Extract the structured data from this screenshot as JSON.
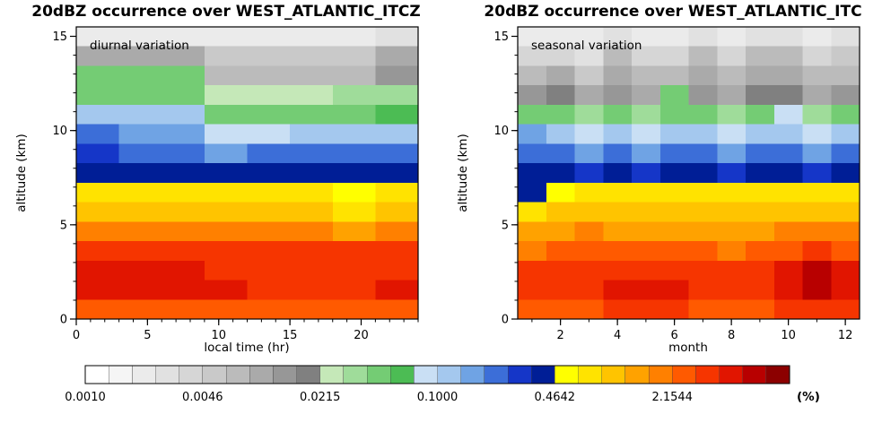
{
  "page": {
    "background": "#ffffff"
  },
  "color_scale": {
    "min_percent": 0.001,
    "max_percent": 10,
    "unit_label": "(%)",
    "tick_labels": [
      "0.0010",
      "0.0046",
      "0.0215",
      "0.1000",
      "0.4642",
      "2.1544"
    ],
    "colors": [
      "#ffffff",
      "#f5f5f5",
      "#ebebeb",
      "#e1e1e1",
      "#d6d6d6",
      "#c9c9c9",
      "#bbbbbb",
      "#aaaaaa",
      "#979797",
      "#808080",
      "#c5e8b8",
      "#9fdc9a",
      "#74cc74",
      "#4cbc54",
      "#c9dff4",
      "#a4c8ee",
      "#6fa3e4",
      "#3c6ed8",
      "#1536c8",
      "#001e96",
      "#ffff00",
      "#ffe300",
      "#ffc400",
      "#ffa200",
      "#ff8000",
      "#ff5a00",
      "#f63500",
      "#e11500",
      "#b80000",
      "#8c0000"
    ]
  },
  "chart_data": [
    {
      "type": "heatmap",
      "title": "20dBZ occurrence over WEST_ATLANTIC_ITCZ",
      "annotation": "diurnal variation",
      "xlabel": "local time (hr)",
      "ylabel": "altitude (km)",
      "x_range": [
        0,
        24
      ],
      "y_range": [
        0,
        15.5
      ],
      "x_ticks": [
        0,
        5,
        10,
        15,
        20
      ],
      "x_minor_step": 1,
      "y_ticks": [
        0,
        5,
        10,
        15
      ],
      "y_minor_step": 1,
      "x_bin_starts_hr": [
        0,
        3,
        6,
        9,
        12,
        15,
        18,
        21
      ],
      "row_altitudes_km_top_to_bottom": [
        15,
        14,
        13,
        12,
        11,
        10,
        9,
        8,
        7,
        6,
        5,
        4,
        3,
        2,
        1
      ],
      "values_percent": [
        [
          0.0022,
          0.0022,
          0.0022,
          0.0022,
          0.0022,
          0.0022,
          0.0022,
          0.0029
        ],
        [
          0.01,
          0.01,
          0.01,
          0.0054,
          0.0054,
          0.0054,
          0.0054,
          0.01
        ],
        [
          0.046,
          0.046,
          0.046,
          0.0074,
          0.0074,
          0.0074,
          0.0074,
          0.014
        ],
        [
          0.046,
          0.046,
          0.046,
          0.025,
          0.025,
          0.025,
          0.034,
          0.034
        ],
        [
          0.117,
          0.117,
          0.117,
          0.046,
          0.046,
          0.046,
          0.046,
          0.063
        ],
        [
          0.215,
          0.158,
          0.158,
          0.086,
          0.086,
          0.117,
          0.117,
          0.117
        ],
        [
          0.293,
          0.215,
          0.215,
          0.158,
          0.215,
          0.215,
          0.215,
          0.215
        ],
        [
          0.398,
          0.398,
          0.398,
          0.398,
          0.398,
          0.398,
          0.398,
          0.398
        ],
        [
          0.74,
          0.74,
          0.74,
          0.74,
          0.74,
          0.74,
          0.54,
          0.74
        ],
        [
          1.0,
          1.0,
          1.0,
          1.0,
          1.0,
          1.0,
          0.74,
          1.0
        ],
        [
          1.85,
          1.85,
          1.85,
          1.85,
          1.85,
          1.85,
          1.36,
          1.85
        ],
        [
          3.41,
          3.41,
          3.41,
          3.41,
          3.41,
          3.41,
          3.41,
          3.41
        ],
        [
          4.64,
          4.64,
          4.64,
          3.41,
          3.41,
          3.41,
          3.41,
          3.41
        ],
        [
          4.64,
          4.64,
          4.64,
          4.64,
          3.41,
          3.41,
          3.41,
          4.64
        ],
        [
          2.51,
          2.51,
          2.51,
          2.51,
          2.51,
          2.51,
          2.51,
          2.51
        ]
      ]
    },
    {
      "type": "heatmap",
      "title": "20dBZ occurrence over WEST_ATLANTIC_ITC",
      "annotation": "seasonal variation",
      "xlabel": "month",
      "ylabel": "altitude (km)",
      "x_range": [
        0.5,
        12.5
      ],
      "y_range": [
        0,
        15.5
      ],
      "x_ticks": [
        2,
        4,
        6,
        8,
        10,
        12
      ],
      "x_minor_step": 1,
      "y_ticks": [
        0,
        5,
        10,
        15
      ],
      "y_minor_step": 1,
      "x_bin_starts_month": [
        1,
        2,
        3,
        4,
        5,
        6,
        7,
        8,
        9,
        10,
        11,
        12
      ],
      "row_altitudes_km_top_to_bottom": [
        15,
        14,
        13,
        12,
        11,
        10,
        9,
        8,
        7,
        6,
        5,
        4,
        3,
        2,
        1
      ],
      "values_percent": [
        [
          0.0022,
          0.0022,
          0.0022,
          0.0029,
          0.0022,
          0.0022,
          0.0029,
          0.0022,
          0.0029,
          0.0029,
          0.0022,
          0.0029
        ],
        [
          0.004,
          0.004,
          0.0029,
          0.0074,
          0.004,
          0.004,
          0.0074,
          0.004,
          0.0074,
          0.0074,
          0.004,
          0.0054
        ],
        [
          0.0074,
          0.01,
          0.0054,
          0.01,
          0.0074,
          0.0074,
          0.01,
          0.0074,
          0.01,
          0.01,
          0.0074,
          0.0074
        ],
        [
          0.014,
          0.019,
          0.01,
          0.014,
          0.01,
          0.046,
          0.014,
          0.01,
          0.019,
          0.019,
          0.01,
          0.014
        ],
        [
          0.046,
          0.046,
          0.034,
          0.046,
          0.034,
          0.046,
          0.046,
          0.034,
          0.046,
          0.086,
          0.034,
          0.046
        ],
        [
          0.158,
          0.117,
          0.086,
          0.117,
          0.086,
          0.117,
          0.117,
          0.086,
          0.117,
          0.117,
          0.086,
          0.117
        ],
        [
          0.215,
          0.215,
          0.158,
          0.215,
          0.158,
          0.215,
          0.215,
          0.158,
          0.215,
          0.215,
          0.158,
          0.215
        ],
        [
          0.398,
          0.398,
          0.293,
          0.398,
          0.293,
          0.398,
          0.398,
          0.293,
          0.398,
          0.398,
          0.293,
          0.398
        ],
        [
          0.398,
          0.54,
          0.74,
          0.74,
          0.74,
          0.74,
          0.74,
          0.74,
          0.74,
          0.74,
          0.74,
          0.74
        ],
        [
          0.74,
          1.0,
          1.0,
          1.0,
          1.0,
          1.0,
          1.0,
          1.0,
          1.0,
          1.0,
          1.0,
          1.0
        ],
        [
          1.36,
          1.36,
          1.85,
          1.36,
          1.36,
          1.36,
          1.36,
          1.36,
          1.36,
          1.85,
          1.85,
          1.85
        ],
        [
          1.85,
          2.51,
          2.51,
          2.51,
          2.51,
          2.51,
          2.51,
          1.85,
          2.51,
          2.51,
          3.41,
          2.51
        ],
        [
          3.41,
          3.41,
          3.41,
          3.41,
          3.41,
          3.41,
          3.41,
          3.41,
          3.41,
          4.64,
          6.31,
          4.64
        ],
        [
          3.41,
          3.41,
          3.41,
          4.64,
          4.64,
          4.64,
          3.41,
          3.41,
          3.41,
          4.64,
          6.31,
          4.64
        ],
        [
          2.51,
          2.51,
          2.51,
          3.41,
          3.41,
          3.41,
          2.51,
          2.51,
          2.51,
          3.41,
          3.41,
          3.41
        ]
      ]
    }
  ]
}
